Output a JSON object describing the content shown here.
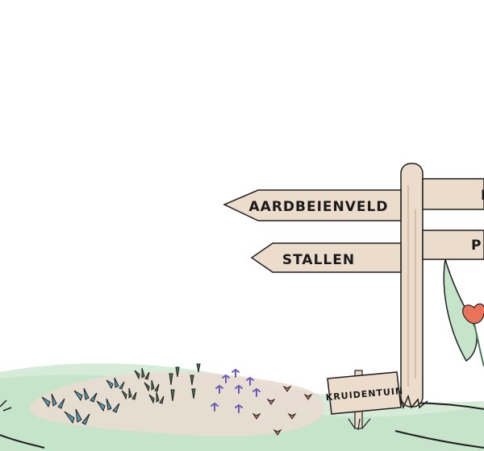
{
  "signpost": {
    "arrows": [
      {
        "label": "AARDBEIENVELD"
      },
      {
        "label": "STALLEN"
      },
      {
        "label": "P"
      },
      {
        "label": "P"
      }
    ]
  },
  "small_sign": {
    "label": "KRUIDENTUIN"
  },
  "colors": {
    "hill_light": "#cfe8d2",
    "hill_mid": "#b8dcbc",
    "soil": "#e8d9cf",
    "wood": "#ecdccc",
    "wood_dark": "#cbb39c",
    "outline": "#1f1f1f",
    "text": "#1a1a1a",
    "flower_red": "#e8735a",
    "flower_purple": "#6b5bb8",
    "herb_blue": "#5a9db8",
    "herb_green": "#4d7a5a"
  }
}
